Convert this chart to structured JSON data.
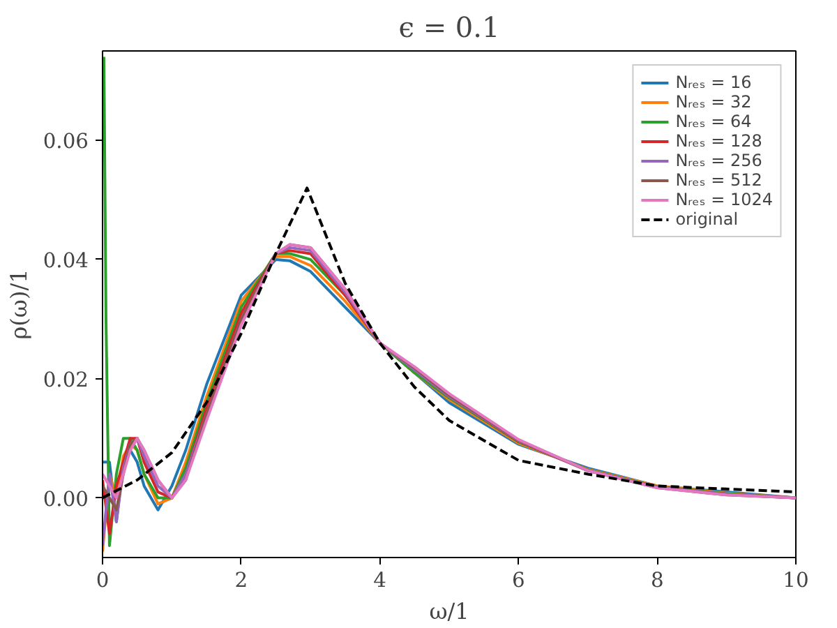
{
  "chart_data": {
    "type": "line",
    "title": "ϵ = 0.1",
    "xlabel": "ω/1",
    "ylabel": "ρ(ω)/1",
    "x": [
      0,
      0.1,
      0.2,
      0.3,
      0.4,
      0.5,
      0.6,
      0.8,
      1.0,
      1.2,
      1.5,
      2.0,
      2.5,
      2.7,
      3.0,
      3.5,
      4.0,
      4.5,
      5,
      6,
      7,
      8,
      9,
      10
    ],
    "xlim": [
      0,
      10
    ],
    "xticks": [
      0,
      2,
      4,
      6,
      8,
      10
    ],
    "ylim": [
      -0.01,
      0.075
    ],
    "yticks": [
      {
        "value": 0,
        "label": "0.00"
      },
      {
        "value": 0.02,
        "label": "0.02"
      },
      {
        "value": 0.04,
        "label": "0.04"
      },
      {
        "value": 0.06,
        "label": "0.06"
      }
    ],
    "grid": false,
    "legend": "top right",
    "line_style": "solid",
    "series": [
      {
        "name": "Nᵣₑₛ = 16",
        "color": "#1f77b4",
        "values": [
          0.006,
          0.006,
          -0.004,
          0.006,
          0.008,
          0.006,
          0.002,
          -0.002,
          0.002,
          0.008,
          0.019,
          0.034,
          0.04,
          0.0398,
          0.038,
          0.032,
          0.026,
          0.021,
          0.016,
          0.009,
          0.005,
          0.002,
          0.001,
          0.0
        ]
      },
      {
        "name": "Nᵣₑₛ = 32",
        "color": "#ff7f0e",
        "values": [
          -0.009,
          0.004,
          0.0,
          0.007,
          0.009,
          0.008,
          0.004,
          -0.001,
          0.0,
          0.006,
          0.017,
          0.033,
          0.0405,
          0.0405,
          0.039,
          0.033,
          0.026,
          0.021,
          0.0165,
          0.0092,
          0.0048,
          0.002,
          0.0008,
          0.0
        ]
      },
      {
        "name": "Nᵣₑₛ = 64",
        "color": "#2ca02c",
        "x": [
          0.02,
          0.05,
          0.1,
          0.2,
          0.3,
          0.4,
          0.5,
          0.6,
          0.8,
          1.0,
          1.2,
          1.5,
          2.0,
          2.5,
          2.7,
          3.0,
          3.5,
          4.0,
          4.5,
          5,
          6,
          7,
          8,
          9,
          10
        ],
        "values": [
          0.074,
          0.03,
          -0.008,
          0.004,
          0.01,
          0.01,
          0.008,
          0.004,
          0.0,
          0.0,
          0.005,
          0.016,
          0.032,
          0.041,
          0.041,
          0.04,
          0.034,
          0.026,
          0.021,
          0.0168,
          0.0094,
          0.0047,
          0.0019,
          0.0007,
          0.0
        ]
      },
      {
        "name": "Nᵣₑₛ = 128",
        "color": "#d62728",
        "values": [
          0.003,
          -0.006,
          0.002,
          0.006,
          0.01,
          0.01,
          0.006,
          0.001,
          0.0,
          0.004,
          0.015,
          0.031,
          0.041,
          0.0415,
          0.041,
          0.034,
          0.026,
          0.0215,
          0.017,
          0.0095,
          0.0046,
          0.0018,
          0.0006,
          0.0
        ]
      },
      {
        "name": "Nᵣₑₛ = 256",
        "color": "#9467bd",
        "values": [
          -0.008,
          0.004,
          -0.004,
          0.005,
          0.009,
          0.01,
          0.007,
          0.002,
          0.0,
          0.004,
          0.014,
          0.03,
          0.041,
          0.042,
          0.0415,
          0.0345,
          0.026,
          0.0215,
          0.017,
          0.0096,
          0.0046,
          0.0018,
          0.0006,
          0.0
        ]
      },
      {
        "name": "Nᵣₑₛ = 512",
        "color": "#8c564b",
        "values": [
          0.002,
          0.0,
          -0.002,
          0.004,
          0.009,
          0.01,
          0.008,
          0.003,
          0.0,
          0.003,
          0.014,
          0.03,
          0.041,
          0.0425,
          0.042,
          0.035,
          0.026,
          0.0218,
          0.0172,
          0.0097,
          0.0046,
          0.0017,
          0.0005,
          0.0
        ]
      },
      {
        "name": "Nᵣₑₛ = 1024",
        "color": "#e377c2",
        "values": [
          0.004,
          0.002,
          0.0,
          0.004,
          0.008,
          0.01,
          0.008,
          0.003,
          0.0,
          0.003,
          0.013,
          0.029,
          0.041,
          0.0425,
          0.042,
          0.035,
          0.026,
          0.022,
          0.0175,
          0.0098,
          0.0046,
          0.0017,
          0.0005,
          0.0
        ]
      },
      {
        "name": "original",
        "color": "#000000",
        "line_style": "dashed",
        "x": [
          0,
          0.5,
          1,
          1.5,
          2,
          2.5,
          2.95,
          3.5,
          4,
          4.5,
          5,
          6,
          7,
          8,
          9,
          10
        ],
        "values": [
          0,
          0.003,
          0.0076,
          0.016,
          0.0276,
          0.041,
          0.052,
          0.036,
          0.026,
          0.0186,
          0.013,
          0.0063,
          0.004,
          0.002,
          0.0015,
          0.001
        ]
      }
    ]
  }
}
